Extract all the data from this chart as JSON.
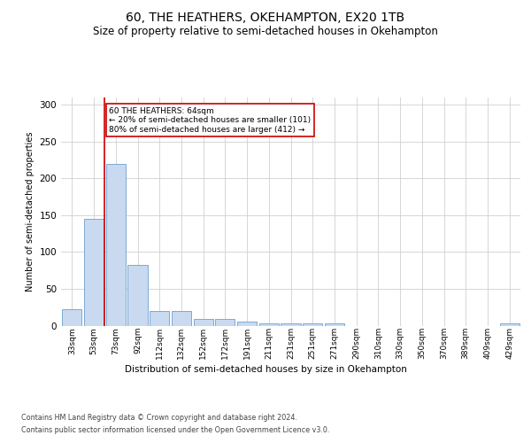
{
  "title": "60, THE HEATHERS, OKEHAMPTON, EX20 1TB",
  "subtitle": "Size of property relative to semi-detached houses in Okehampton",
  "xlabel": "Distribution of semi-detached houses by size in Okehampton",
  "ylabel": "Number of semi-detached properties",
  "annotation_title": "60 THE HEATHERS: 64sqm",
  "annotation_line1": "← 20% of semi-detached houses are smaller (101)",
  "annotation_line2": "80% of semi-detached houses are larger (412) →",
  "footer_line1": "Contains HM Land Registry data © Crown copyright and database right 2024.",
  "footer_line2": "Contains public sector information licensed under the Open Government Licence v3.0.",
  "bin_labels": [
    "33sqm",
    "53sqm",
    "73sqm",
    "92sqm",
    "112sqm",
    "132sqm",
    "152sqm",
    "172sqm",
    "191sqm",
    "211sqm",
    "231sqm",
    "251sqm",
    "271sqm",
    "290sqm",
    "310sqm",
    "330sqm",
    "350sqm",
    "370sqm",
    "389sqm",
    "409sqm",
    "429sqm"
  ],
  "bar_values": [
    22,
    145,
    220,
    82,
    20,
    20,
    9,
    9,
    6,
    3,
    3,
    3,
    3,
    0,
    0,
    0,
    0,
    0,
    0,
    0,
    3
  ],
  "bar_color": "#c9d9f0",
  "bar_edge_color": "#7aaad4",
  "vline_x": 1.5,
  "vline_color": "#cc0000",
  "annotation_box_color": "#ffffff",
  "annotation_box_edge": "#cc0000",
  "ylim": [
    0,
    310
  ],
  "yticks": [
    0,
    50,
    100,
    150,
    200,
    250,
    300
  ],
  "grid_color": "#d0d0d0",
  "background_color": "#ffffff",
  "title_fontsize": 10,
  "subtitle_fontsize": 8.5
}
